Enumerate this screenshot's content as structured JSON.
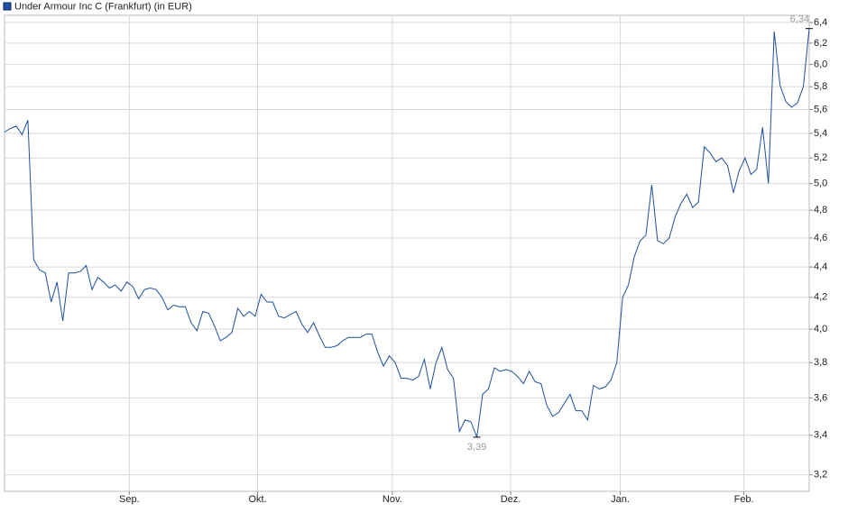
{
  "chart_data": {
    "type": "line",
    "title": "Under Armour Inc C (Frankfurt) (in EUR)",
    "series": [
      {
        "name": "Under Armour Inc C (Frankfurt) (in EUR)",
        "color": "#1f4f9e",
        "values": [
          5.41,
          5.44,
          5.46,
          5.39,
          5.51,
          4.45,
          4.38,
          4.36,
          4.17,
          4.3,
          4.05,
          4.36,
          4.36,
          4.37,
          4.41,
          4.25,
          4.33,
          4.3,
          4.26,
          4.28,
          4.24,
          4.3,
          4.27,
          4.19,
          4.25,
          4.26,
          4.25,
          4.2,
          4.12,
          4.15,
          4.14,
          4.14,
          4.04,
          3.99,
          4.11,
          4.1,
          4.02,
          3.93,
          3.95,
          3.98,
          4.13,
          4.08,
          4.11,
          4.08,
          4.22,
          4.17,
          4.17,
          4.08,
          4.07,
          4.09,
          4.11,
          4.03,
          3.98,
          4.04,
          3.96,
          3.89,
          3.89,
          3.9,
          3.93,
          3.95,
          3.95,
          3.95,
          3.97,
          3.97,
          3.86,
          3.78,
          3.84,
          3.8,
          3.71,
          3.71,
          3.7,
          3.72,
          3.82,
          3.65,
          3.8,
          3.89,
          3.76,
          3.71,
          3.42,
          3.48,
          3.47,
          3.39,
          3.62,
          3.65,
          3.77,
          3.75,
          3.76,
          3.75,
          3.72,
          3.68,
          3.75,
          3.69,
          3.68,
          3.56,
          3.5,
          3.52,
          3.57,
          3.62,
          3.53,
          3.53,
          3.48,
          3.67,
          3.65,
          3.66,
          3.7,
          3.8,
          4.2,
          4.28,
          4.47,
          4.58,
          4.62,
          4.99,
          4.58,
          4.56,
          4.6,
          4.75,
          4.85,
          4.92,
          4.82,
          4.86,
          5.29,
          5.24,
          5.17,
          5.2,
          5.14,
          4.93,
          5.1,
          5.2,
          5.07,
          5.11,
          5.45,
          5.0,
          6.31,
          5.81,
          5.67,
          5.62,
          5.66,
          5.8,
          6.34
        ]
      }
    ],
    "max_label": "6,34",
    "min_label": "3,39",
    "xlim": [
      0,
      138
    ],
    "xticks": [
      {
        "value": 21.4,
        "label": "Sep."
      },
      {
        "value": 43.4,
        "label": "Okt."
      },
      {
        "value": 66.5,
        "label": "Nov."
      },
      {
        "value": 86.8,
        "label": "Dez."
      },
      {
        "value": 105.6,
        "label": "Jan."
      },
      {
        "value": 126.8,
        "label": "Feb."
      }
    ],
    "ylim": [
      3.12,
      6.47
    ],
    "ylog": true,
    "yticks": [
      {
        "value": 3.2,
        "label": "3,2"
      },
      {
        "value": 3.4,
        "label": "3,4"
      },
      {
        "value": 3.6,
        "label": "3,6"
      },
      {
        "value": 3.8,
        "label": "3,8"
      },
      {
        "value": 4.0,
        "label": "4,0"
      },
      {
        "value": 4.2,
        "label": "4,2"
      },
      {
        "value": 4.4,
        "label": "4,4"
      },
      {
        "value": 4.6,
        "label": "4,6"
      },
      {
        "value": 4.8,
        "label": "4,8"
      },
      {
        "value": 5.0,
        "label": "5,0"
      },
      {
        "value": 5.2,
        "label": "5,2"
      },
      {
        "value": 5.4,
        "label": "5,4"
      },
      {
        "value": 5.6,
        "label": "5,6"
      },
      {
        "value": 5.8,
        "label": "5,8"
      },
      {
        "value": 6.0,
        "label": "6,0"
      },
      {
        "value": 6.2,
        "label": "6,2"
      },
      {
        "value": 6.4,
        "label": "6,4"
      }
    ],
    "grid": true
  }
}
